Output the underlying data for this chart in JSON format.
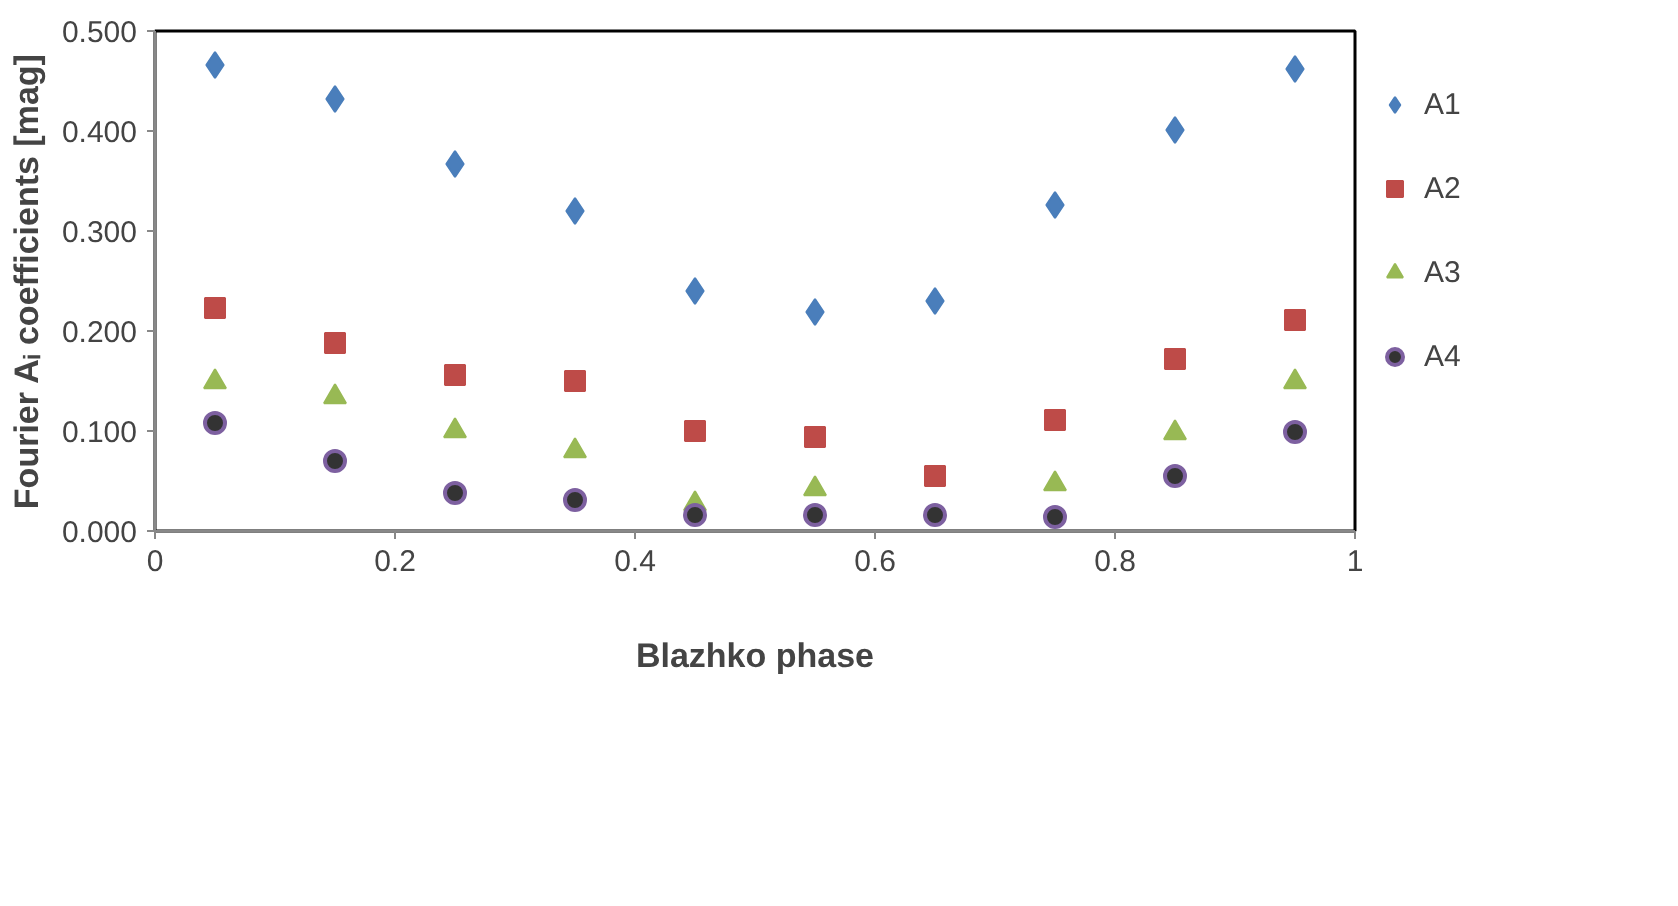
{
  "chart_data": {
    "type": "scatter",
    "xlabel": "Blazhko phase",
    "ylabel": "Fourier Aᵢ coefficients [mag]",
    "x": [
      0.05,
      0.15,
      0.25,
      0.35,
      0.45,
      0.55,
      0.65,
      0.75,
      0.85,
      0.95
    ],
    "xlim": [
      0,
      1
    ],
    "xticks": [
      0,
      {
        "value": 0.2,
        "label": "0.2"
      },
      {
        "value": 0.4,
        "label": "0.4"
      },
      {
        "value": 0.6,
        "label": "0.6"
      },
      {
        "value": 0.8,
        "label": "0.8"
      },
      1
    ],
    "ylim": [
      0,
      0.5
    ],
    "yticks": [
      {
        "value": 0,
        "label": "0.000"
      },
      {
        "value": 0.1,
        "label": "0.100"
      },
      {
        "value": 0.2,
        "label": "0.200"
      },
      {
        "value": 0.3,
        "label": "0.300"
      },
      {
        "value": 0.4,
        "label": "0.400"
      },
      {
        "value": 0.5,
        "label": "0.500"
      }
    ],
    "grid": false,
    "legend": "right",
    "series": [
      {
        "name": "A1",
        "color": "#4a7ebb",
        "marker": "diamond",
        "values": [
          0.466,
          0.432,
          0.367,
          0.32,
          0.24,
          0.219,
          0.23,
          0.326,
          0.401,
          0.462
        ]
      },
      {
        "name": "A2",
        "color": "#be4b48",
        "marker": "square",
        "values": [
          0.223,
          0.188,
          0.156,
          0.15,
          0.1,
          0.094,
          0.055,
          0.111,
          0.172,
          0.211
        ]
      },
      {
        "name": "A3",
        "color": "#98b954",
        "marker": "triangle",
        "values": [
          0.149,
          0.134,
          0.1,
          0.08,
          0.027,
          0.042,
          null,
          0.047,
          0.098,
          0.149
        ]
      },
      {
        "name": "A4",
        "color": "#7d60a0",
        "marker": "circle",
        "values": [
          0.108,
          0.07,
          0.038,
          0.031,
          0.016,
          0.016,
          0.016,
          0.014,
          0.055,
          0.099
        ]
      }
    ]
  }
}
